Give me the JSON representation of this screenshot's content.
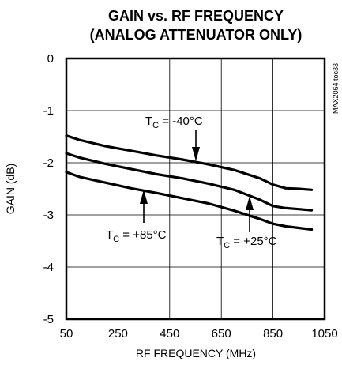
{
  "chart_data": {
    "type": "line",
    "title_line1": "GAIN vs. RF FREQUENCY",
    "title_line2": "(ANALOG ATTENUATOR ONLY)",
    "xlabel": "RF FREQUENCY (MHz)",
    "ylabel": "GAIN (dB)",
    "xlim": [
      50,
      1050
    ],
    "ylim": [
      -5,
      0
    ],
    "xticks": [
      50,
      250,
      450,
      650,
      850,
      1050
    ],
    "yticks": [
      0,
      -1,
      -2,
      -3,
      -4,
      -5
    ],
    "grid": true,
    "figure_code": "MAX2064 toc33",
    "series": [
      {
        "name": "TC = -40°C",
        "x": [
          50,
          100,
          200,
          300,
          400,
          500,
          600,
          700,
          800,
          850,
          900,
          950,
          1000
        ],
        "y": [
          -1.48,
          -1.56,
          -1.68,
          -1.77,
          -1.86,
          -1.94,
          -2.03,
          -2.14,
          -2.3,
          -2.42,
          -2.49,
          -2.5,
          -2.52
        ]
      },
      {
        "name": "TC = +25°C",
        "x": [
          50,
          100,
          200,
          300,
          400,
          500,
          600,
          700,
          800,
          850,
          900,
          950,
          1000
        ],
        "y": [
          -1.82,
          -1.9,
          -2.02,
          -2.12,
          -2.22,
          -2.3,
          -2.4,
          -2.52,
          -2.71,
          -2.83,
          -2.87,
          -2.89,
          -2.91
        ]
      },
      {
        "name": "TC = +85°C",
        "x": [
          50,
          100,
          200,
          300,
          400,
          500,
          600,
          700,
          800,
          850,
          900,
          950,
          1000
        ],
        "y": [
          -2.18,
          -2.27,
          -2.38,
          -2.49,
          -2.58,
          -2.68,
          -2.78,
          -2.92,
          -3.08,
          -3.17,
          -3.22,
          -3.25,
          -3.28
        ]
      }
    ],
    "annotations": [
      {
        "prefix": "T",
        "sub": "C",
        "text": " = -40°C",
        "series": 0
      },
      {
        "prefix": "T",
        "sub": "C",
        "text": " = +25°C",
        "series": 1
      },
      {
        "prefix": "T",
        "sub": "C",
        "text": " = +85°C",
        "series": 2
      }
    ]
  }
}
